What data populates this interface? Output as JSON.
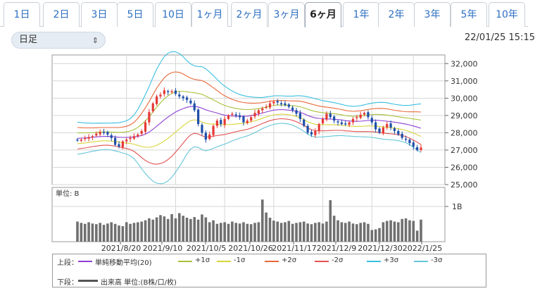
{
  "tabs": [
    {
      "label": "1日",
      "active": false
    },
    {
      "label": "2日",
      "active": false
    },
    {
      "label": "3日",
      "active": false
    },
    {
      "label": "5日",
      "active": false
    },
    {
      "label": "10日",
      "active": false
    },
    {
      "label": "1ヶ月",
      "active": false
    },
    {
      "label": "2ヶ月",
      "active": false
    },
    {
      "label": "3ヶ月",
      "active": false
    },
    {
      "label": "6ヶ月",
      "active": true
    },
    {
      "label": "1年",
      "active": false
    },
    {
      "label": "2年",
      "active": false
    },
    {
      "label": "3年",
      "active": false
    },
    {
      "label": "5年",
      "active": false
    },
    {
      "label": "10年",
      "active": false
    }
  ],
  "period_select": {
    "value": "日足"
  },
  "timestamp": "22/01/25 15:15",
  "colors": {
    "accent": "#2d6fc1",
    "candle_up": "#e53935",
    "candle_down": "#1e4ea8",
    "sma": "#8e3fd3",
    "band1": "#a8c23a",
    "band2": "#e8683a",
    "band3": "#3bbfe0",
    "volume": "#707070",
    "grid": "#d6d6d6"
  },
  "chart_data": [
    {
      "type": "candlestick",
      "title": "",
      "ylim": [
        25000,
        32500
      ],
      "y_ticks": [
        "32,000",
        "31,000",
        "30,000",
        "29,000",
        "28,000",
        "27,000",
        "26,000",
        "25,000"
      ],
      "x_tick_labels": [
        "2021/8/20",
        "2021/9/10",
        "2021/10/5",
        "2021/10/26",
        "2021/11/17",
        "2021/12/9",
        "2021/12/30",
        "2022/1/25"
      ],
      "grid": true,
      "close": [
        27550,
        27600,
        27700,
        27750,
        27800,
        27950,
        28050,
        28000,
        27900,
        27700,
        27300,
        27200,
        27500,
        27600,
        27700,
        27800,
        27900,
        28100,
        28600,
        29200,
        29700,
        30100,
        30200,
        30450,
        30350,
        30400,
        30250,
        30100,
        30000,
        29900,
        29700,
        29300,
        28500,
        28000,
        27600,
        27900,
        28400,
        28700,
        28500,
        28800,
        29000,
        29100,
        29000,
        28900,
        28600,
        28700,
        28900,
        29150,
        29300,
        29400,
        29500,
        29700,
        29800,
        29750,
        29700,
        29600,
        29500,
        29300,
        29100,
        28800,
        28400,
        28000,
        27900,
        28100,
        28500,
        28800,
        29100,
        28900,
        28700,
        28600,
        28500,
        28500,
        28600,
        28800,
        28900,
        29050,
        29150,
        28900,
        28600,
        28200,
        28000,
        28300,
        28500,
        28300,
        28100,
        27900,
        27700,
        27600,
        27400,
        27200,
        27000,
        27150
      ],
      "series": [
        {
          "name": "単純移動平均(20)",
          "values": [
            27680,
            27690,
            27700,
            27720,
            27740,
            27760,
            27780,
            27790,
            27790,
            27780,
            27760,
            27740,
            27730,
            27730,
            27740,
            27760,
            27790,
            27840,
            27920,
            28040,
            28200,
            28380,
            28560,
            28740,
            28910,
            29060,
            29200,
            29310,
            29400,
            29470,
            29520,
            29530,
            29490,
            29420,
            29330,
            29260,
            29200,
            29140,
            29070,
            29020,
            28990,
            28970,
            28960,
            28950,
            28950,
            28960,
            28990,
            29030,
            29080,
            29140,
            29200,
            29260,
            29310,
            29330,
            29340,
            29330,
            29310,
            29280,
            29240,
            29180,
            29100,
            29000,
            28920,
            28860,
            28830,
            28810,
            28800,
            28790,
            28780,
            28760,
            28740,
            28700,
            28680,
            28660,
            28660,
            28670,
            28690,
            28710,
            28720,
            28720,
            28710,
            28690,
            28670,
            28640,
            28610,
            28580,
            28540,
            28500,
            28450,
            28390,
            28330,
            28260
          ]
        },
        {
          "name": "+1σ",
          "values": []
        },
        {
          "name": "-1σ",
          "values": []
        },
        {
          "name": "+2σ",
          "values": []
        },
        {
          "name": "-2σ",
          "values": []
        },
        {
          "name": "+3σ",
          "values": []
        },
        {
          "name": "-3σ",
          "values": []
        }
      ],
      "sigma": [
        310,
        300,
        290,
        280,
        270,
        265,
        260,
        255,
        255,
        260,
        270,
        280,
        300,
        320,
        360,
        420,
        520,
        640,
        760,
        880,
        1000,
        1100,
        1170,
        1220,
        1230,
        1210,
        1160,
        1090,
        1000,
        900,
        820,
        780,
        780,
        800,
        790,
        750,
        700,
        650,
        600,
        560,
        520,
        480,
        450,
        420,
        400,
        380,
        360,
        340,
        320,
        300,
        290,
        280,
        275,
        270,
        265,
        265,
        270,
        280,
        300,
        320,
        340,
        360,
        370,
        370,
        360,
        350,
        340,
        330,
        320,
        310,
        300,
        295,
        290,
        290,
        295,
        300,
        310,
        320,
        330,
        340,
        350,
        355,
        355,
        350,
        345,
        345,
        350,
        360,
        380,
        410,
        440,
        470
      ]
    },
    {
      "type": "bar",
      "title": "",
      "unit_label": "単位: B",
      "y_tick": "1B",
      "values": [
        0.62,
        0.58,
        0.55,
        0.6,
        0.56,
        0.54,
        0.58,
        0.52,
        0.56,
        0.6,
        0.55,
        0.5,
        0.48,
        0.6,
        0.55,
        0.58,
        0.6,
        0.62,
        0.66,
        0.72,
        0.68,
        0.75,
        0.82,
        0.78,
        0.7,
        0.85,
        0.72,
        0.88,
        0.8,
        0.74,
        0.7,
        0.76,
        0.68,
        0.84,
        0.75,
        0.6,
        0.66,
        0.55,
        0.58,
        0.6,
        0.55,
        0.62,
        0.58,
        0.56,
        0.6,
        0.55,
        0.54,
        0.58,
        0.6,
        1.3,
        0.9,
        0.74,
        0.65,
        0.62,
        0.58,
        0.6,
        0.64,
        0.55,
        0.58,
        0.6,
        0.62,
        0.56,
        0.54,
        0.58,
        0.6,
        0.56,
        0.62,
        1.28,
        0.8,
        0.66,
        0.6,
        0.58,
        0.62,
        0.56,
        0.54,
        0.58,
        0.6,
        0.55,
        0.36,
        0.38,
        0.42,
        0.6,
        0.64,
        0.66,
        0.62,
        0.6,
        0.7,
        0.72,
        0.66,
        0.64,
        0.34,
        0.68
      ]
    }
  ],
  "legend": {
    "upper_label": "上段：",
    "lower_label": "下段：",
    "items": [
      {
        "label": "単純移動平均(20)",
        "color": "#8e3fd3"
      },
      {
        "label": "+1σ",
        "color": "#a8c23a"
      },
      {
        "label": "-1σ",
        "color": "#d9d43a"
      },
      {
        "label": "+2σ",
        "color": "#e8683a"
      },
      {
        "label": "-2σ",
        "color": "#e35252"
      },
      {
        "label": "+3σ",
        "color": "#3bbfe0"
      },
      {
        "label": "-3σ",
        "color": "#64c6d8"
      }
    ],
    "volume_item": {
      "label": "出来高 単位:(B株/口/枚)",
      "color": "#555555"
    }
  }
}
